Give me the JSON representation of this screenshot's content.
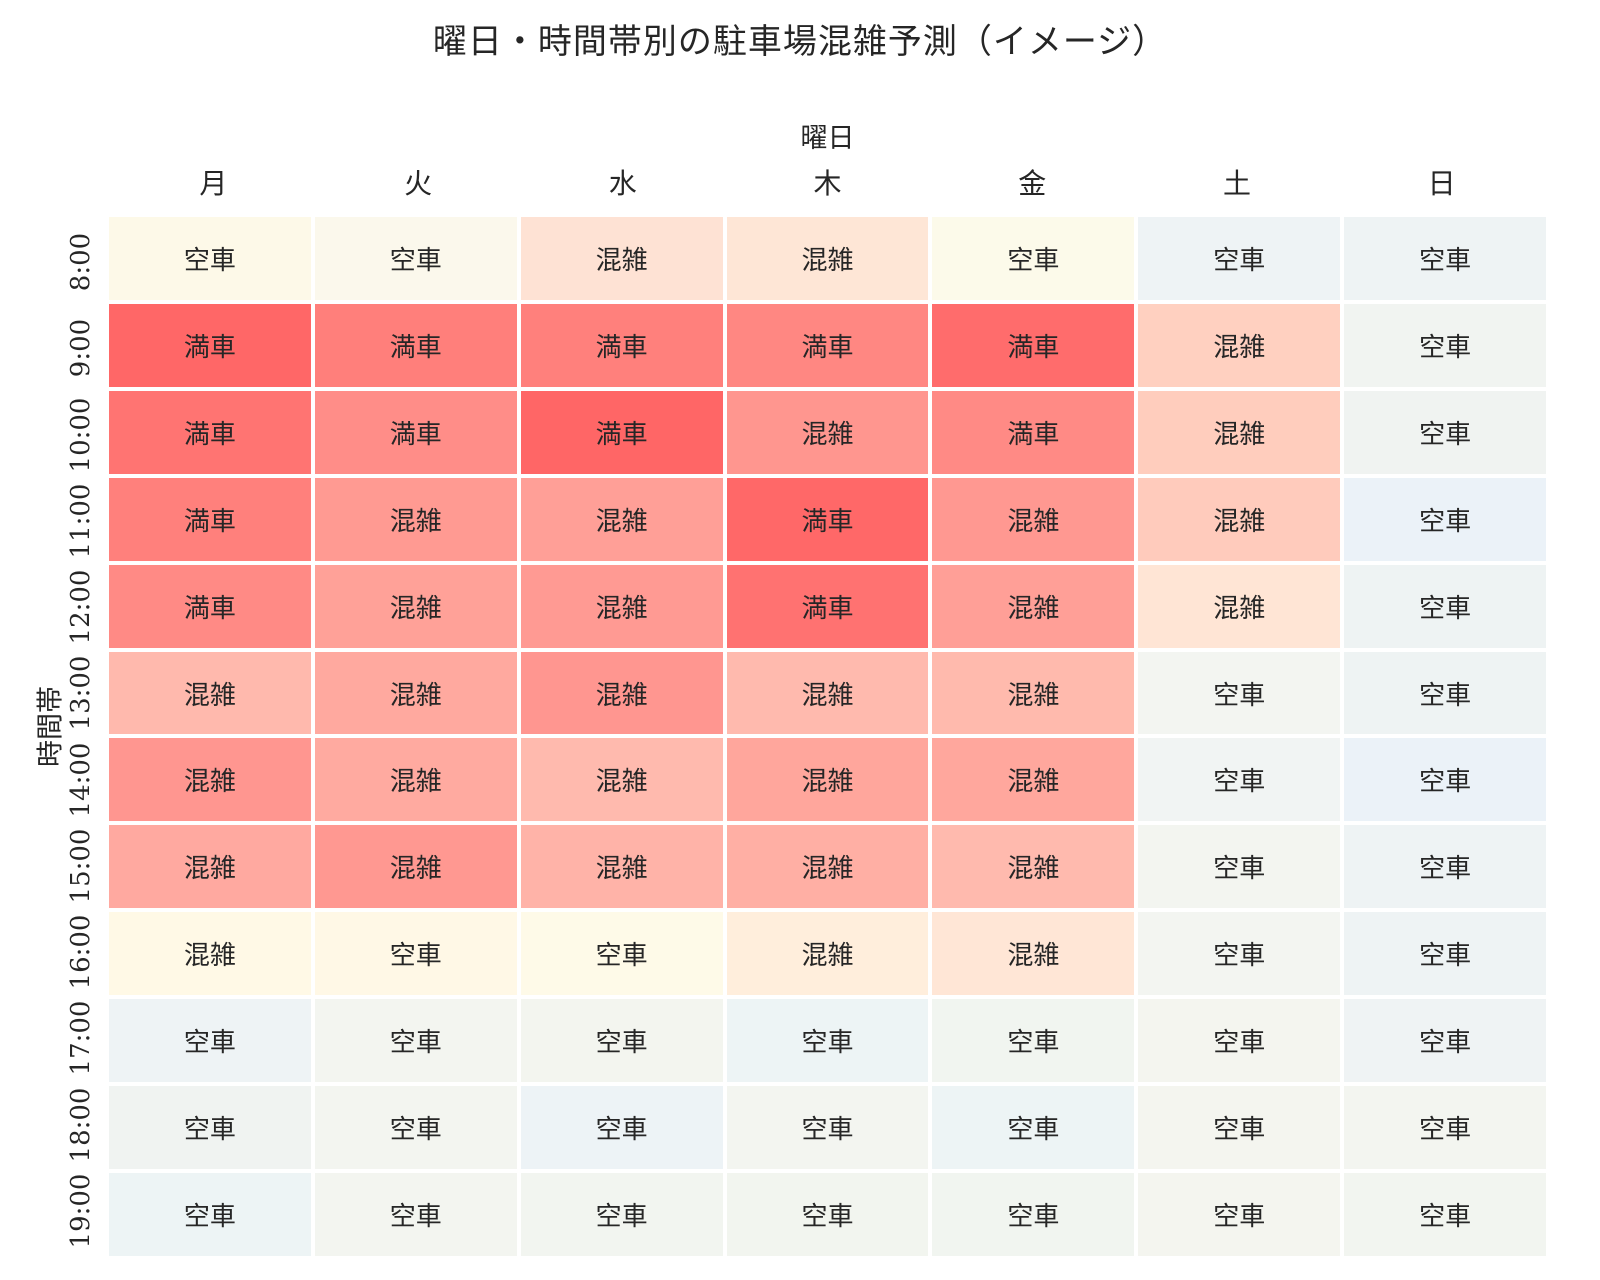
{
  "chart_data": {
    "type": "heatmap",
    "title": "曜日・時間帯別の駐車場混雑予測（イメージ）",
    "xlabel": "曜日",
    "ylabel": "時間帯",
    "x": [
      "月",
      "火",
      "水",
      "木",
      "金",
      "土",
      "日"
    ],
    "y": [
      "8:00",
      "9:00",
      "10:00",
      "11:00",
      "12:00",
      "13:00",
      "14:00",
      "15:00",
      "16:00",
      "17:00",
      "18:00",
      "19:00"
    ],
    "annotations": [
      [
        "空車",
        "空車",
        "混雑",
        "混雑",
        "空車",
        "空車",
        "空車"
      ],
      [
        "満車",
        "満車",
        "満車",
        "満車",
        "満車",
        "混雑",
        "空車"
      ],
      [
        "満車",
        "満車",
        "満車",
        "混雑",
        "満車",
        "混雑",
        "空車"
      ],
      [
        "満車",
        "混雑",
        "混雑",
        "満車",
        "混雑",
        "混雑",
        "空車"
      ],
      [
        "満車",
        "混雑",
        "混雑",
        "満車",
        "混雑",
        "混雑",
        "空車"
      ],
      [
        "混雑",
        "混雑",
        "混雑",
        "混雑",
        "混雑",
        "空車",
        "空車"
      ],
      [
        "混雑",
        "混雑",
        "混雑",
        "混雑",
        "混雑",
        "空車",
        "空車"
      ],
      [
        "混雑",
        "混雑",
        "混雑",
        "混雑",
        "混雑",
        "空車",
        "空車"
      ],
      [
        "混雑",
        "空車",
        "空車",
        "混雑",
        "混雑",
        "空車",
        "空車"
      ],
      [
        "空車",
        "空車",
        "空車",
        "空車",
        "空車",
        "空車",
        "空車"
      ],
      [
        "空車",
        "空車",
        "空車",
        "空車",
        "空車",
        "空車",
        "空車"
      ],
      [
        "空車",
        "空車",
        "空車",
        "空車",
        "空車",
        "空車",
        "空車"
      ]
    ],
    "colors": [
      [
        "#fdf9e8",
        "#fbf8ec",
        "#fee2d4",
        "#fee6d6",
        "#fcfaea",
        "#eef3f5",
        "#eef3f4"
      ],
      [
        "#ff6767",
        "#ff7f7b",
        "#ff807c",
        "#ff8782",
        "#ff6c6c",
        "#ffd0c0",
        "#f1f4f1"
      ],
      [
        "#ff7472",
        "#ff8d88",
        "#ff6666",
        "#ff968f",
        "#ff8a85",
        "#ffcdbd",
        "#f0f3f1"
      ],
      [
        "#ff807c",
        "#ff9a92",
        "#ff9f97",
        "#ff6868",
        "#ff9891",
        "#ffcbbc",
        "#ebf2f8"
      ],
      [
        "#ff8a85",
        "#ffa198",
        "#ff9a93",
        "#ff7271",
        "#ff9f97",
        "#ffe5d5",
        "#eef3f3"
      ],
      [
        "#ffb9ad",
        "#ffa99f",
        "#ff9690",
        "#ffbaae",
        "#ffbaad",
        "#f3f5f1",
        "#eef3f3"
      ],
      [
        "#ff9690",
        "#ffaaa0",
        "#ffbaae",
        "#ffa69c",
        "#ffa79d",
        "#f1f4f3",
        "#ebf2f8"
      ],
      [
        "#ffa9a0",
        "#ff9891",
        "#ffb3a8",
        "#ffafa4",
        "#ffbaae",
        "#f3f5f0",
        "#eef3f4"
      ],
      [
        "#fff9e6",
        "#fff8e6",
        "#fefae8",
        "#ffeedc",
        "#ffe6d6",
        "#f3f5f1",
        "#eef3f4"
      ],
      [
        "#eef3f5",
        "#f3f5f0",
        "#f3f5ef",
        "#edf4f5",
        "#f1f5f0",
        "#f4f5ef",
        "#eff3f4"
      ],
      [
        "#f0f3f1",
        "#f3f5f0",
        "#edf3f6",
        "#f3f5f0",
        "#edf4f5",
        "#f4f5ef",
        "#f3f5f0"
      ],
      [
        "#edf4f5",
        "#f3f5f0",
        "#f2f5f0",
        "#f2f5ef",
        "#f1f5f0",
        "#f4f5ef",
        "#f2f5f0"
      ]
    ],
    "levels": {
      "empty": "空車",
      "busy": "混雑",
      "full": "満車"
    },
    "colormap": "blue-white-red (light)",
    "legend": "none",
    "grid": false
  }
}
